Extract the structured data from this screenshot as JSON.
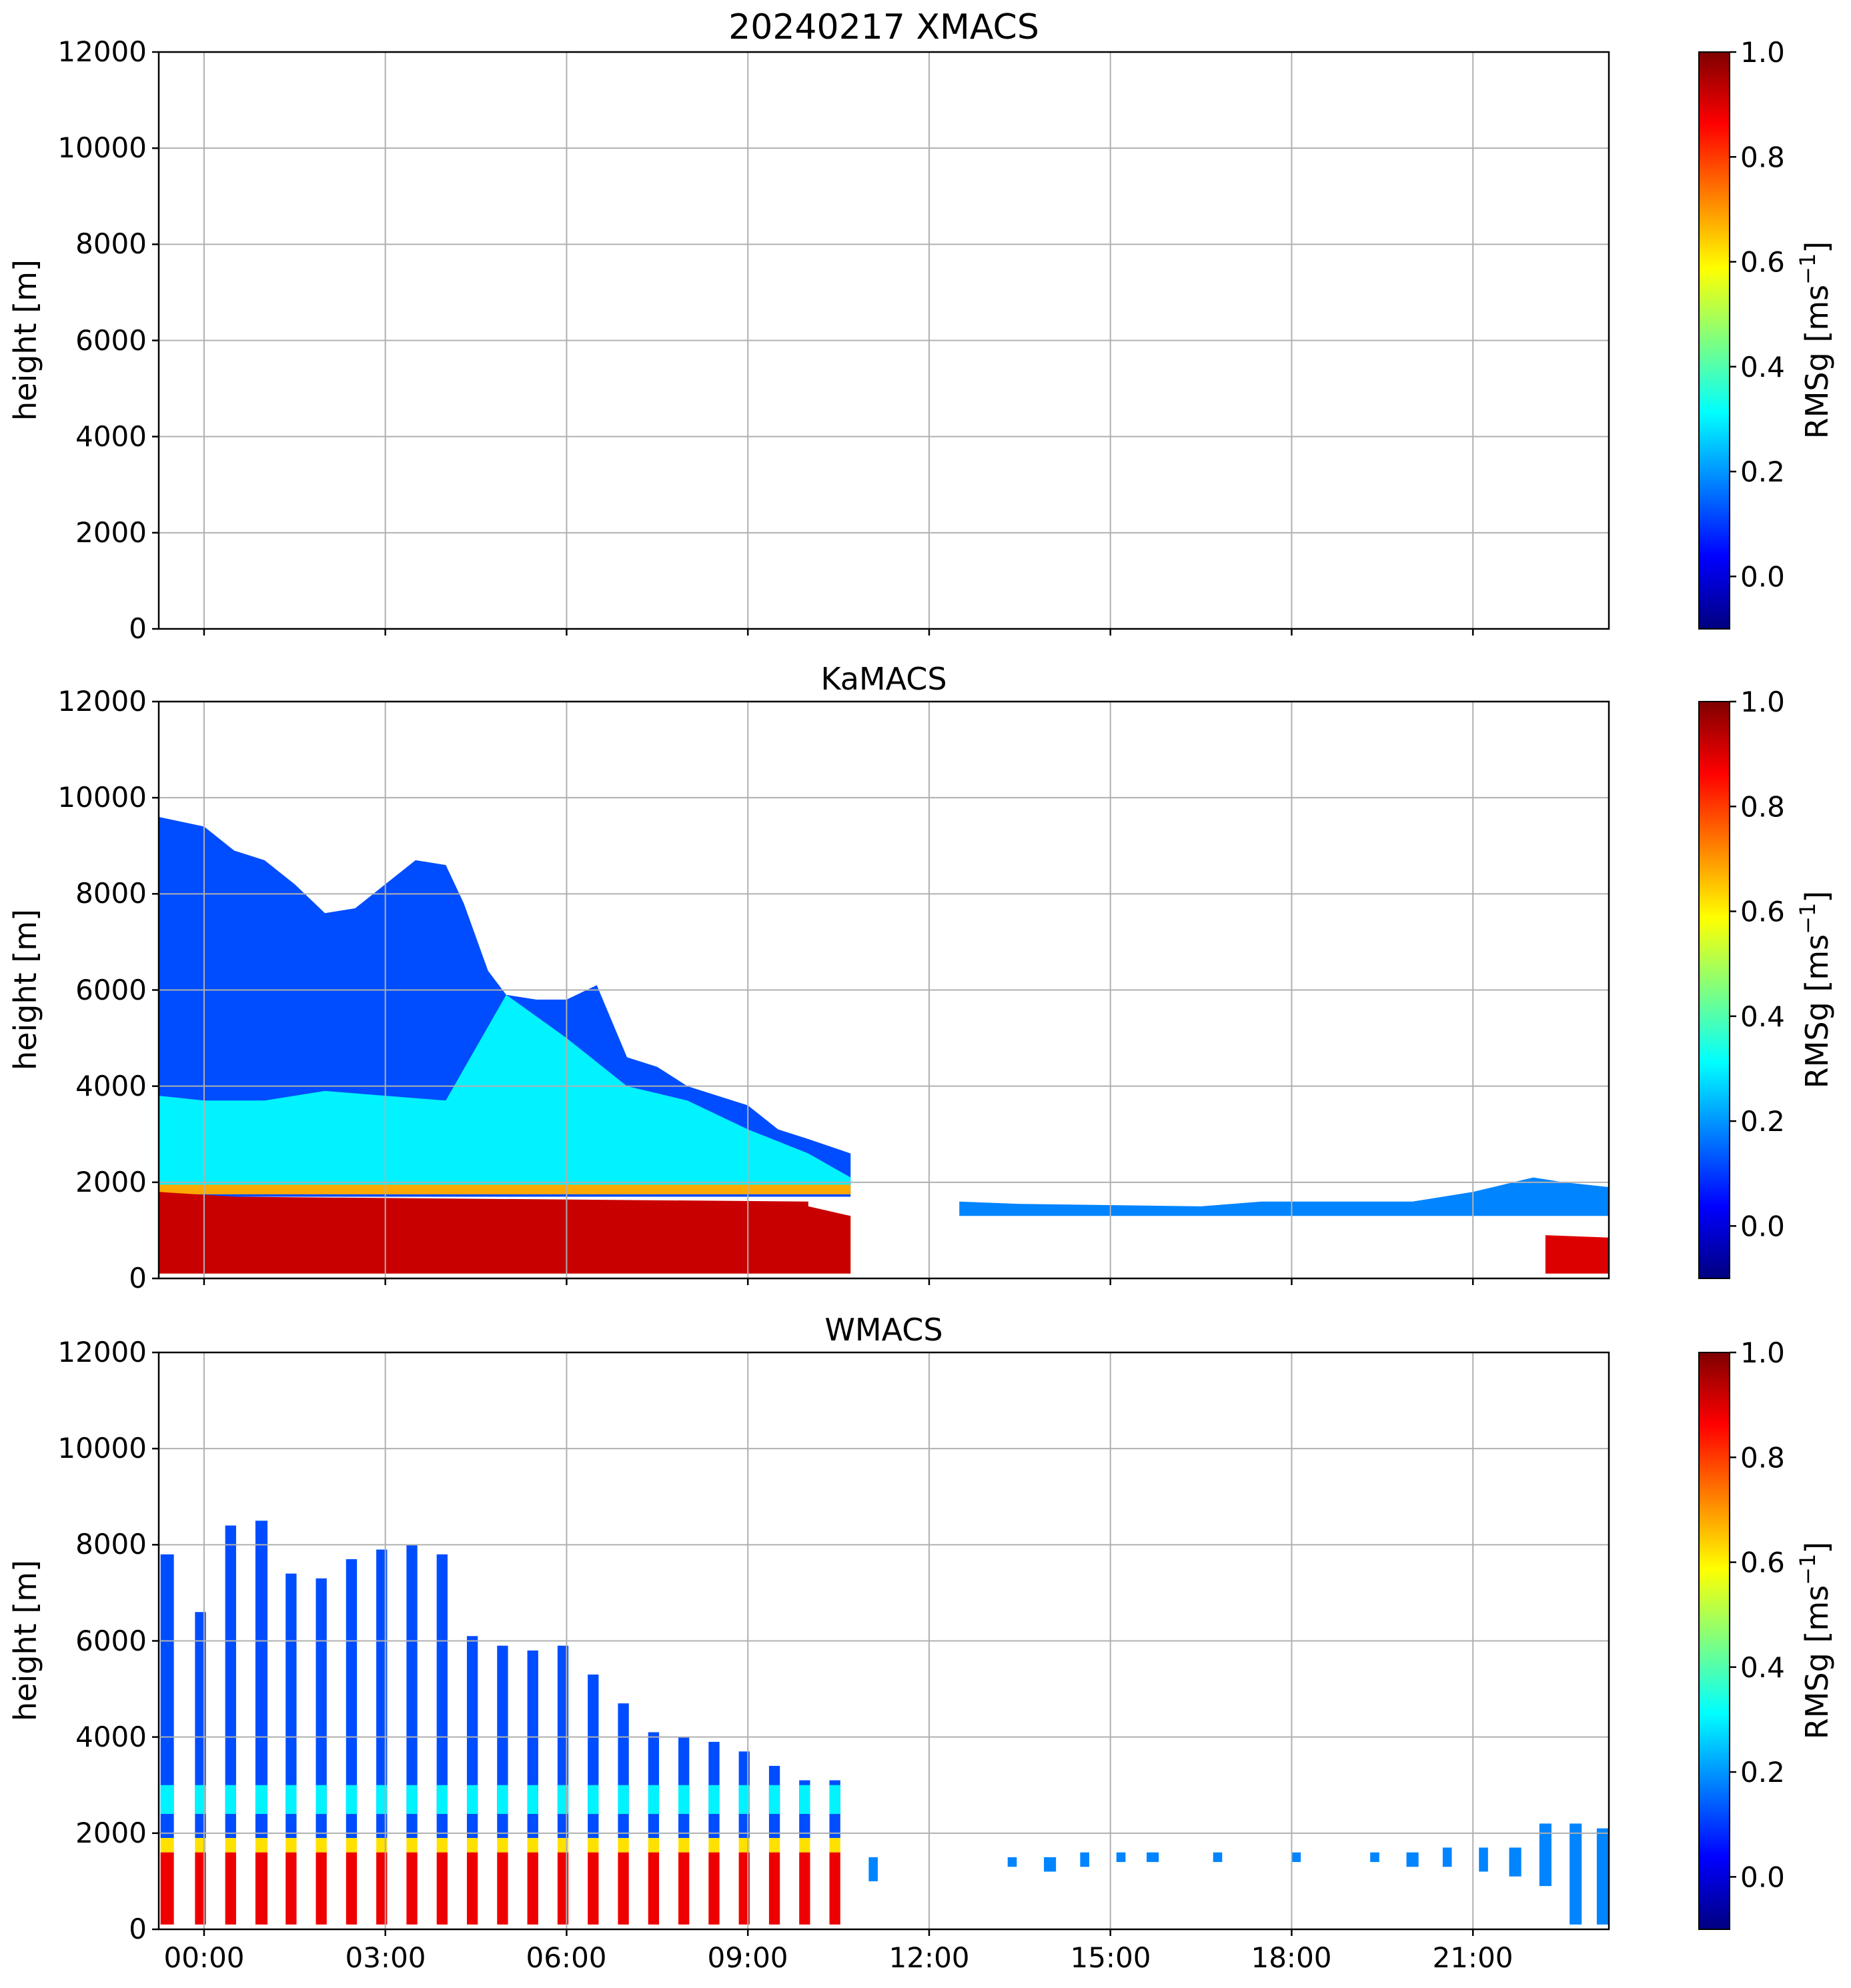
{
  "colorbar_stops": [
    "#00007f",
    "#0000ff",
    "#007fff",
    "#00ffff",
    "#7fff7f",
    "#ffff00",
    "#ff7f00",
    "#ff0000",
    "#7f0000"
  ],
  "colors": {
    "grid": "#b0b0b0",
    "axis": "#000000",
    "background": "#ffffff"
  },
  "chart_data": [
    {
      "type": "heatmap",
      "title": "20240217 XMACS",
      "xlabel": "",
      "ylabel": "height [m]",
      "ylim": [
        0,
        12000
      ],
      "xlim_hours": [
        -0.75,
        23.25
      ],
      "yticks": [
        "0",
        "2000",
        "4000",
        "6000",
        "8000",
        "10000",
        "12000"
      ],
      "xticks": [],
      "colorbar": {
        "label": "RMSg [ms",
        "label_sup": "−1",
        "label_end": "]",
        "range": [
          -0.1,
          1.0
        ],
        "ticks": [
          "0.0",
          "0.2",
          "0.4",
          "0.6",
          "0.8",
          "1.0"
        ]
      },
      "layers": []
    },
    {
      "type": "heatmap",
      "title": "KaMACS",
      "xlabel": "",
      "ylabel": "height [m]",
      "ylim": [
        0,
        12000
      ],
      "xlim_hours": [
        -0.75,
        23.25
      ],
      "yticks": [
        "0",
        "2000",
        "4000",
        "6000",
        "8000",
        "10000",
        "12000"
      ],
      "xticks": [],
      "colorbar": {
        "label": "RMSg [ms",
        "label_sup": "−1",
        "label_end": "]",
        "range": [
          -0.1,
          1.0
        ],
        "ticks": [
          "0.0",
          "0.2",
          "0.4",
          "0.6",
          "0.8",
          "1.0"
        ]
      },
      "layers": [
        {
          "name": "upper cloud, low RMSg",
          "t": [
            -0.75,
            0,
            0.5,
            1,
            1.5,
            2,
            2.5,
            3,
            3.5,
            4,
            4.3,
            4.7,
            5,
            5.5,
            6,
            6.5,
            7,
            7.5,
            8,
            8.5,
            9,
            9.5,
            10,
            10.7,
            10.7
          ],
          "top": [
            9600,
            9400,
            8900,
            8700,
            8200,
            7600,
            7700,
            8200,
            8700,
            8600,
            7800,
            6400,
            5900,
            5800,
            5800,
            6100,
            4600,
            4400,
            4000,
            3800,
            3600,
            3100,
            2900,
            2600,
            1800
          ],
          "bottom": 1700,
          "value": 0.12
        },
        {
          "name": "mid-level band",
          "t": [
            -0.75,
            0,
            1,
            2,
            3,
            4,
            5,
            6,
            7,
            8,
            9,
            10,
            10.7
          ],
          "top": [
            3800,
            3700,
            3700,
            3900,
            3800,
            3700,
            5900,
            5000,
            4000,
            3700,
            3100,
            2600,
            2100
          ],
          "bottom": 1800,
          "value": 0.3
        },
        {
          "name": "melting layer",
          "t": [
            -0.75,
            10.7
          ],
          "top": [
            1950,
            1950
          ],
          "bottom": 1750,
          "value": 0.68
        },
        {
          "name": "rain below melting layer",
          "t": [
            -0.75,
            0.5,
            10.0,
            10.0,
            10.7
          ],
          "top": [
            1800,
            1700,
            1600,
            1500,
            1300
          ],
          "bottom": 100,
          "value": 0.92
        },
        {
          "name": "afternoon low layer",
          "t": [
            12.5,
            13.5,
            16.5,
            17.5,
            20,
            21,
            22,
            22.5,
            23.25
          ],
          "top": [
            1600,
            1550,
            1500,
            1600,
            1600,
            1800,
            2100,
            2000,
            1900
          ],
          "bottom": 1300,
          "value": 0.18
        },
        {
          "name": "late rain",
          "t": [
            22.2,
            23.25
          ],
          "top": [
            900,
            850
          ],
          "bottom": 100,
          "value": 0.9
        }
      ]
    },
    {
      "type": "heatmap",
      "title": "WMACS",
      "xlabel": "",
      "ylabel": "height [m]",
      "ylim": [
        0,
        12000
      ],
      "xlim_hours": [
        -0.75,
        23.25
      ],
      "yticks": [
        "0",
        "2000",
        "4000",
        "6000",
        "8000",
        "10000",
        "12000"
      ],
      "xticks": [
        "00:00",
        "03:00",
        "06:00",
        "09:00",
        "12:00",
        "15:00",
        "18:00",
        "21:00"
      ],
      "colorbar": {
        "label": "RMSg [ms",
        "label_sup": "−1",
        "label_end": "]",
        "range": [
          -0.1,
          1.0
        ],
        "ticks": [
          "0.0",
          "0.2",
          "0.4",
          "0.6",
          "0.8",
          "1.0"
        ]
      },
      "columns": [
        {
          "t": -0.72,
          "w": 0.22,
          "top": 7800
        },
        {
          "t": -0.15,
          "w": 0.18,
          "top": 6600
        },
        {
          "t": 0.35,
          "w": 0.18,
          "top": 8400
        },
        {
          "t": 0.85,
          "w": 0.2,
          "top": 8500
        },
        {
          "t": 1.35,
          "w": 0.18,
          "top": 7400
        },
        {
          "t": 1.85,
          "w": 0.18,
          "top": 7300
        },
        {
          "t": 2.35,
          "w": 0.18,
          "top": 7700
        },
        {
          "t": 2.85,
          "w": 0.18,
          "top": 7900
        },
        {
          "t": 3.35,
          "w": 0.18,
          "top": 8000
        },
        {
          "t": 3.85,
          "w": 0.18,
          "top": 7800
        },
        {
          "t": 4.35,
          "w": 0.18,
          "top": 6100
        },
        {
          "t": 4.85,
          "w": 0.18,
          "top": 5900
        },
        {
          "t": 5.35,
          "w": 0.18,
          "top": 5800
        },
        {
          "t": 5.85,
          "w": 0.18,
          "top": 5900
        },
        {
          "t": 6.35,
          "w": 0.18,
          "top": 5300
        },
        {
          "t": 6.85,
          "w": 0.18,
          "top": 4700
        },
        {
          "t": 7.35,
          "w": 0.18,
          "top": 4100
        },
        {
          "t": 7.85,
          "w": 0.18,
          "top": 4000
        },
        {
          "t": 8.35,
          "w": 0.18,
          "top": 3900
        },
        {
          "t": 8.85,
          "w": 0.18,
          "top": 3700
        },
        {
          "t": 9.35,
          "w": 0.18,
          "top": 3400
        },
        {
          "t": 9.85,
          "w": 0.18,
          "top": 3100
        },
        {
          "t": 10.35,
          "w": 0.18,
          "top": 3100
        }
      ],
      "melting_layer": [
        1600,
        1900
      ],
      "afternoon_segments": [
        {
          "t": 11.0,
          "w": 0.15,
          "top": 1500,
          "bottom": 1000
        },
        {
          "t": 13.3,
          "w": 0.15,
          "top": 1500,
          "bottom": 1300
        },
        {
          "t": 13.9,
          "w": 0.2,
          "top": 1500,
          "bottom": 1200
        },
        {
          "t": 14.5,
          "w": 0.15,
          "top": 1600,
          "bottom": 1300
        },
        {
          "t": 15.1,
          "w": 0.15,
          "top": 1600,
          "bottom": 1400
        },
        {
          "t": 15.6,
          "w": 0.2,
          "top": 1600,
          "bottom": 1400
        },
        {
          "t": 16.7,
          "w": 0.15,
          "top": 1600,
          "bottom": 1400
        },
        {
          "t": 18.0,
          "w": 0.15,
          "top": 1600,
          "bottom": 1400
        },
        {
          "t": 19.3,
          "w": 0.15,
          "top": 1600,
          "bottom": 1400
        },
        {
          "t": 19.9,
          "w": 0.2,
          "top": 1600,
          "bottom": 1300
        },
        {
          "t": 20.5,
          "w": 0.15,
          "top": 1700,
          "bottom": 1300
        },
        {
          "t": 21.1,
          "w": 0.15,
          "top": 1700,
          "bottom": 1200
        },
        {
          "t": 21.6,
          "w": 0.2,
          "top": 1700,
          "bottom": 1100
        },
        {
          "t": 22.1,
          "w": 0.2,
          "top": 2200,
          "bottom": 900
        },
        {
          "t": 22.6,
          "w": 0.2,
          "top": 2200,
          "bottom": 100
        },
        {
          "t": 23.05,
          "w": 0.2,
          "top": 2100,
          "bottom": 100
        }
      ]
    }
  ]
}
